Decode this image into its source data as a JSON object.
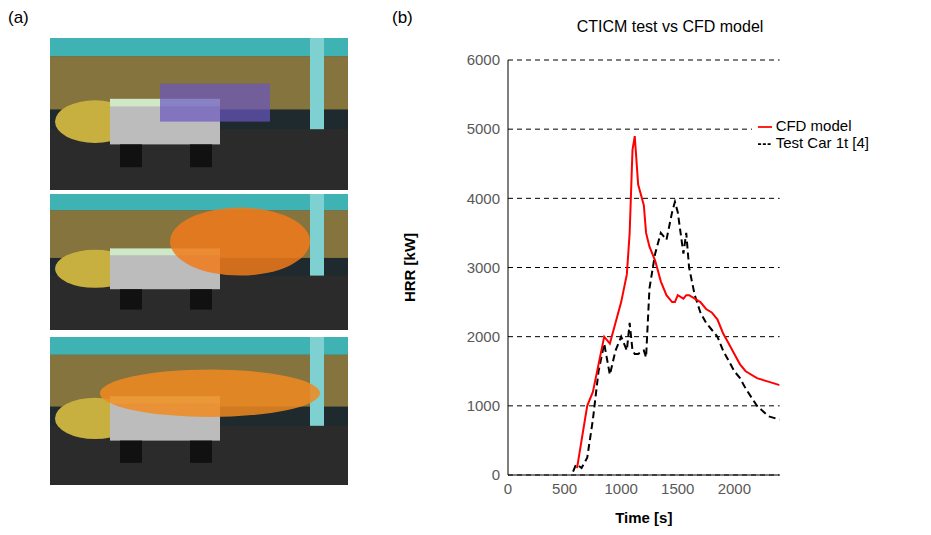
{
  "panel_labels": [
    "(a)",
    "(b)"
  ],
  "chart_data": {
    "type": "line",
    "title": "CTICM test vs CFD model",
    "x_label": "Time [s]",
    "y_label": "HRR [kW]",
    "x": [
      575,
      600,
      610,
      650,
      700,
      750,
      800,
      850,
      900,
      950,
      1000,
      1050,
      1075,
      1100,
      1120,
      1150,
      1200,
      1220,
      1250,
      1300,
      1350,
      1400,
      1450,
      1475,
      1500,
      1550,
      1575,
      1600,
      1650,
      1700,
      1750,
      1800,
      1850,
      1900,
      1950,
      2000,
      2050,
      2100,
      2200,
      2300,
      2400
    ],
    "series": [
      {
        "name": "Test Car 1t [4]",
        "color": "#000000",
        "line_style": "dashed",
        "values": [
          50,
          150,
          150,
          100,
          250,
          800,
          1500,
          1900,
          1450,
          1800,
          2000,
          1800,
          2200,
          1800,
          1750,
          1750,
          1800,
          1700,
          2700,
          3200,
          3500,
          3400,
          3800,
          3950,
          3800,
          3200,
          3500,
          3000,
          2600,
          2350,
          2200,
          2100,
          2000,
          1800,
          1650,
          1500,
          1400,
          1250,
          1000,
          850,
          800
        ]
      },
      {
        "name": "CFD model",
        "color": "#ff0000",
        "line_style": "solid",
        "values": [
          null,
          null,
          100,
          500,
          1000,
          1200,
          1600,
          2000,
          1900,
          2200,
          2500,
          2900,
          3500,
          4700,
          4900,
          4200,
          3900,
          3500,
          3300,
          3100,
          2800,
          2600,
          2500,
          2500,
          2600,
          2550,
          2600,
          2600,
          2550,
          2500,
          2400,
          2350,
          2250,
          2050,
          1900,
          1750,
          1600,
          1500,
          1400,
          1350,
          1300
        ]
      }
    ],
    "xlim": [
      0,
      2400
    ],
    "xticks": [
      0,
      500,
      1000,
      1500,
      2000
    ],
    "ylim": [
      0,
      6000
    ],
    "yticks": [
      0,
      1000,
      2000,
      3000,
      4000,
      5000,
      6000
    ],
    "grid": true,
    "legend": "upper right"
  }
}
